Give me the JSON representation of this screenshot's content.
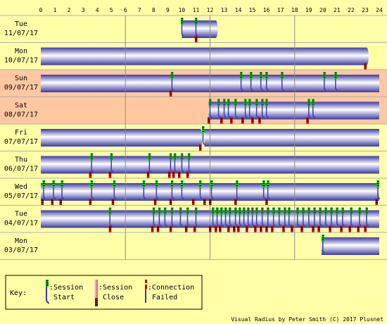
{
  "chart_data": {
    "type": "timeline",
    "x_ticks": [
      "0",
      "1",
      "2",
      "3",
      "4",
      "5",
      "6",
      "7",
      "8",
      "9",
      "10",
      "11",
      "12",
      "13",
      "14",
      "15",
      "16",
      "17",
      "18",
      "19",
      "20",
      "21",
      "22",
      "23",
      "24"
    ],
    "xlim": [
      0,
      24
    ],
    "rows": [
      {
        "day": "Tue",
        "date": "11/07/17",
        "weekend": false,
        "sessions": [
          [
            10.0,
            12.4
          ]
        ],
        "starts": [
          10.0,
          11.0
        ],
        "closes": [
          11.0
        ],
        "fails": []
      },
      {
        "day": "Mon",
        "date": "10/07/17",
        "weekend": false,
        "sessions": [
          [
            0,
            23.1
          ]
        ],
        "starts": [],
        "closes": [
          23.0
        ],
        "fails": []
      },
      {
        "day": "Sun",
        "date": "09/07/17",
        "weekend": true,
        "sessions": [
          [
            0,
            24
          ]
        ],
        "starts": [
          9.3,
          14.2,
          14.9,
          15.6,
          16.0,
          17.1,
          20.1,
          20.9
        ],
        "closes": [
          9.2
        ],
        "fails": []
      },
      {
        "day": "Sat",
        "date": "08/07/17",
        "weekend": true,
        "sessions": [
          [
            11.9,
            24
          ]
        ],
        "starts": [
          12.0,
          12.6,
          13.0,
          13.3,
          13.8,
          14.5,
          14.8,
          15.3,
          15.7,
          16.0,
          19.0,
          19.3
        ],
        "closes": [
          11.9,
          12.8,
          13.5,
          14.3,
          15.0,
          15.5,
          18.9
        ],
        "fails": []
      },
      {
        "day": "Fri",
        "date": "07/07/17",
        "weekend": false,
        "sessions": [
          [
            0,
            11.3
          ],
          [
            11.6,
            24
          ]
        ],
        "starts": [
          11.5
        ],
        "closes": [
          11.3
        ],
        "fails": []
      },
      {
        "day": "Thu",
        "date": "06/07/17",
        "weekend": false,
        "sessions": [
          [
            0,
            24
          ]
        ],
        "starts": [
          3.6,
          5.0,
          7.7,
          9.2,
          9.5,
          10.0,
          10.5
        ],
        "closes": [
          3.5,
          4.9,
          7.6,
          9.1,
          9.4,
          9.8,
          10.4
        ],
        "fails": []
      },
      {
        "day": "Wed",
        "date": "05/07/17",
        "weekend": false,
        "sessions": [
          [
            0,
            24
          ]
        ],
        "starts": [
          0.2,
          0.9,
          1.5,
          3.6,
          5.2,
          7.3,
          8.2,
          9.3,
          10.0,
          11.3,
          12.1,
          13.9,
          15.8,
          16.1,
          23.9
        ],
        "closes": [
          0.1,
          0.8,
          1.4,
          3.5,
          5.1,
          8.1,
          9.2,
          10.8,
          11.6,
          12.0,
          13.8,
          16.0,
          23.8
        ],
        "fails": []
      },
      {
        "day": "Tue",
        "date": "04/07/17",
        "weekend": false,
        "sessions": [
          [
            0,
            24
          ]
        ],
        "starts": [
          4.9,
          8.0,
          8.4,
          8.8,
          9.3,
          9.9,
          10.4,
          11.0,
          12.2,
          12.5,
          12.8,
          13.1,
          13.4,
          13.8,
          14.1,
          14.4,
          14.7,
          15.0,
          15.3,
          15.7,
          16.1,
          16.5,
          16.9,
          17.3,
          17.6,
          18.2,
          18.6,
          19.0,
          19.4,
          19.8,
          20.2,
          20.6,
          21.0,
          21.4,
          22.0,
          22.6,
          23.1
        ],
        "closes": [
          4.9,
          7.9,
          8.3,
          9.2,
          10.3,
          10.9,
          12.0,
          12.4,
          12.7,
          13.3,
          13.7,
          14.0,
          14.6,
          15.2,
          15.6,
          16.0,
          16.4,
          17.2,
          17.8,
          18.5,
          19.3,
          19.7,
          20.5,
          21.3,
          21.9,
          22.5,
          23.0
        ],
        "fails": []
      },
      {
        "day": "Mon",
        "date": "03/07/17",
        "weekend": false,
        "sessions": [
          [
            19.9,
            24
          ]
        ],
        "starts": [
          20.0
        ],
        "closes": [],
        "fails": []
      }
    ]
  },
  "key": {
    "title": "Key:",
    "start_label_1": ":Session",
    "start_label_2": "Start",
    "close_label_1": ":Session",
    "close_label_2": "Close",
    "fail_label_1": ":Connection",
    "fail_label_2": "Failed"
  },
  "footer": "Visual Radius by Peter Smith (C) 2017 Plusnet",
  "colors": {
    "background": "#ffffa8",
    "weekend": "#ffc8a0",
    "session_dark": "#3c3ca8",
    "session_light": "#ffffff",
    "start_green": "#00c800",
    "close_red": "#c80000",
    "frame": "#000000"
  }
}
